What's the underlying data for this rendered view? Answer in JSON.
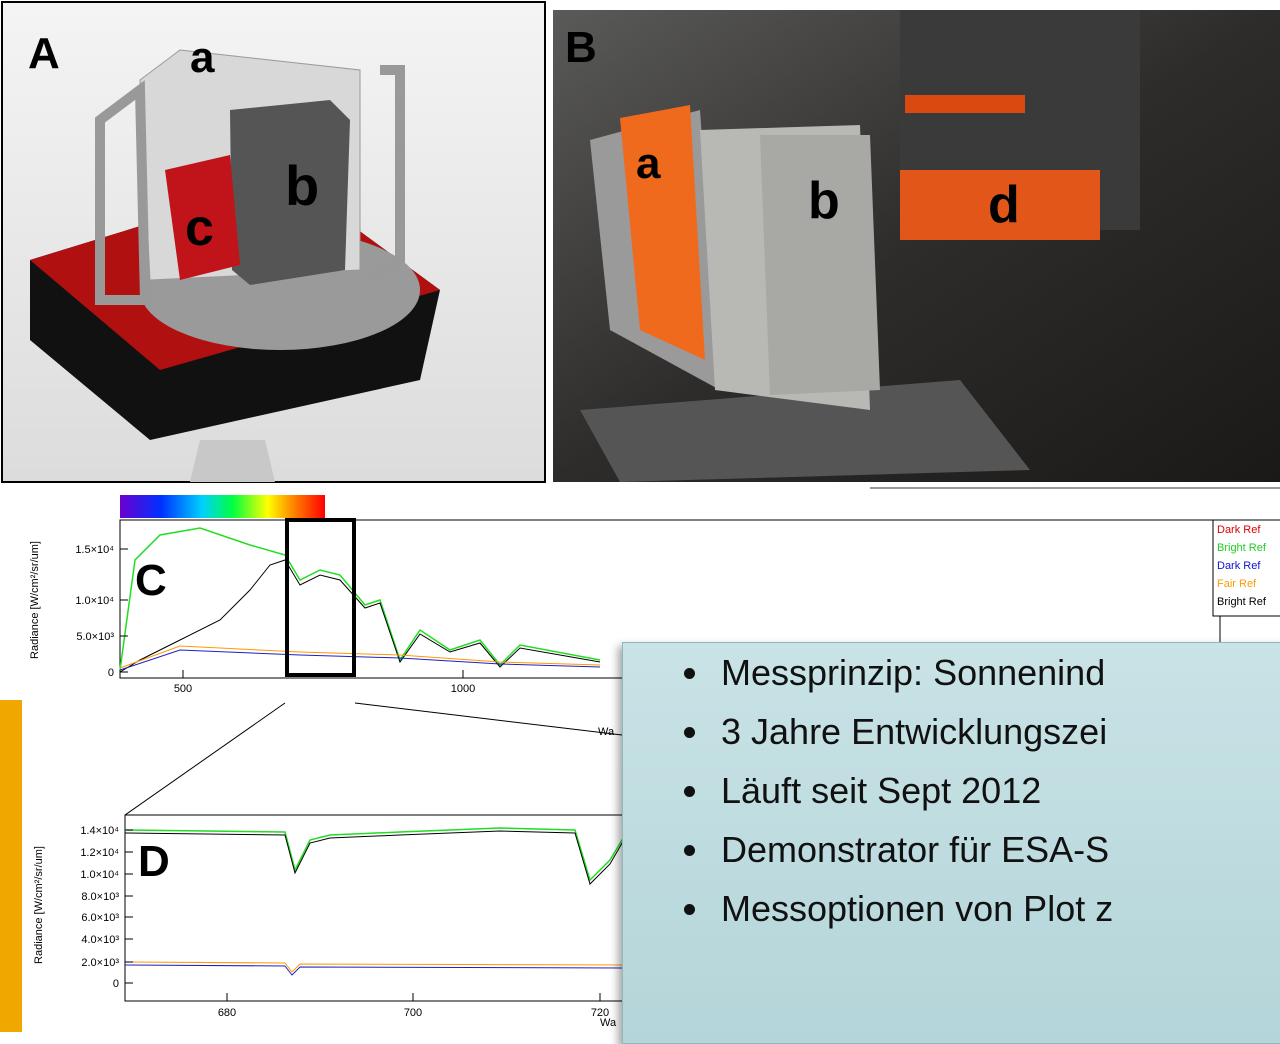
{
  "panel_a": {
    "label": "A",
    "parts": [
      "a",
      "b",
      "c"
    ]
  },
  "panel_b": {
    "label": "B",
    "parts": [
      "a",
      "b",
      "d"
    ]
  },
  "chart_c": {
    "label": "C",
    "y_axis_label": "Radiance [W/cm²/sr/um]",
    "yticks": [
      "0",
      "5.0×10³",
      "1.0×10⁴",
      "1.5×10⁴"
    ],
    "xticks": [
      "500",
      "1000"
    ],
    "x_axis_label": "Wa",
    "legend": [
      "Dark Ref",
      "Bright Ref",
      "Dark Ref",
      "Fair Ref",
      "Bright Ref"
    ]
  },
  "chart_d": {
    "label": "D",
    "y_axis_label": "Radiance [W/cm²/sr/um]",
    "yticks": [
      "0",
      "2.0×10³",
      "4.0×10³",
      "6.0×10³",
      "8.0×10³",
      "1.0×10⁴",
      "1.2×10⁴",
      "1.4×10⁴"
    ],
    "xticks": [
      "680",
      "700",
      "720"
    ],
    "x_axis_label": "Wa"
  },
  "bullets": [
    "Messprinzip: Sonnenind",
    "3 Jahre Entwicklungszei",
    "Läuft seit Sept 2012",
    "Demonstrator für ESA-S",
    "Messoptionen von Plot z"
  ]
}
